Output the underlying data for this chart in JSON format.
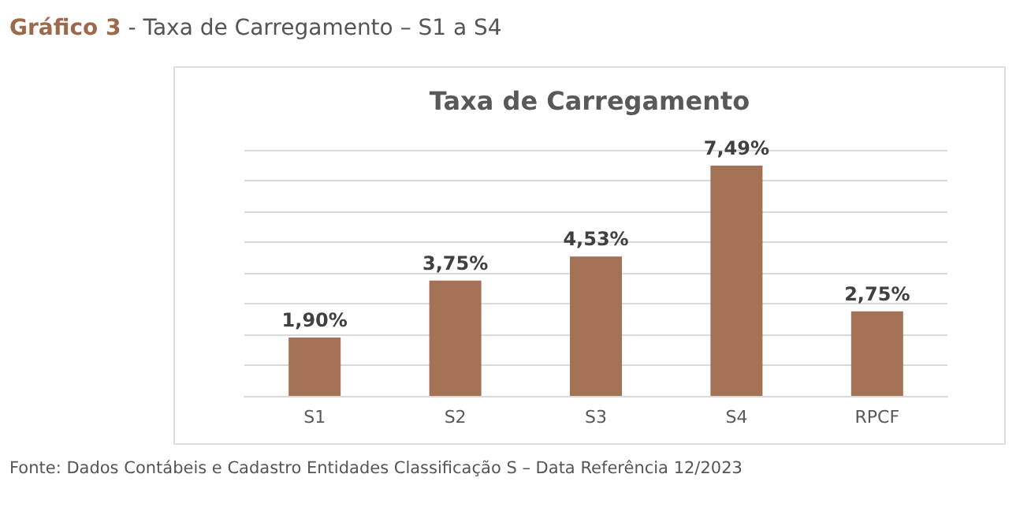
{
  "chart_data": {
    "type": "bar",
    "title": "Gráfico 3 - Taxa de Carregamento – S1 a S4",
    "subtitle": "Taxa de Carregamento",
    "categories": [
      "S1",
      "S2",
      "S3",
      "S4",
      "RPCF"
    ],
    "values": [
      1.9,
      3.75,
      4.53,
      7.49,
      2.75
    ],
    "value_labels": [
      "1,90%",
      "3,75%",
      "4,53%",
      "7,49%",
      "2,75%"
    ],
    "color": "#a37153",
    "ylim": [
      0,
      8
    ],
    "yticks": [
      {
        "value": 0,
        "label": null
      },
      {
        "value": 1,
        "label": null
      },
      {
        "value": 2,
        "label": null
      },
      {
        "value": 3,
        "label": null
      },
      {
        "value": 4,
        "label": null
      },
      {
        "value": 5,
        "label": null
      },
      {
        "value": 6,
        "label": null
      },
      {
        "value": 7,
        "label": null
      },
      {
        "value": 8,
        "label": null
      }
    ],
    "grid": true,
    "tick_labels": "x",
    "annotations": [
      "Fonte: Dados Contábeis e Cadastro Entidades Classificação S – Data Referência 12/2023"
    ]
  }
}
